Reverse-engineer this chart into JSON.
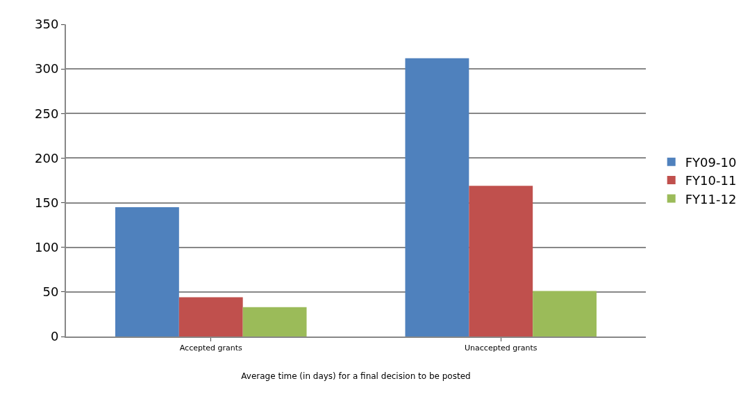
{
  "chart_data": {
    "type": "bar",
    "xlabel": "Average time (in days) for a final decision to be posted",
    "categories": [
      "Accepted grants",
      "Unaccepted grants"
    ],
    "series": [
      {
        "name": "FY09-10",
        "color": "#4f81bd",
        "values": [
          145,
          312
        ]
      },
      {
        "name": "FY10-11",
        "color": "#c0504d",
        "values": [
          44,
          169
        ]
      },
      {
        "name": "FY11-12",
        "color": "#9bbb59",
        "values": [
          33,
          51
        ]
      }
    ],
    "ylim": [
      0,
      350
    ],
    "yticks": [
      0,
      50,
      100,
      150,
      200,
      250,
      300,
      350
    ],
    "grid": "y",
    "legend": "right"
  }
}
